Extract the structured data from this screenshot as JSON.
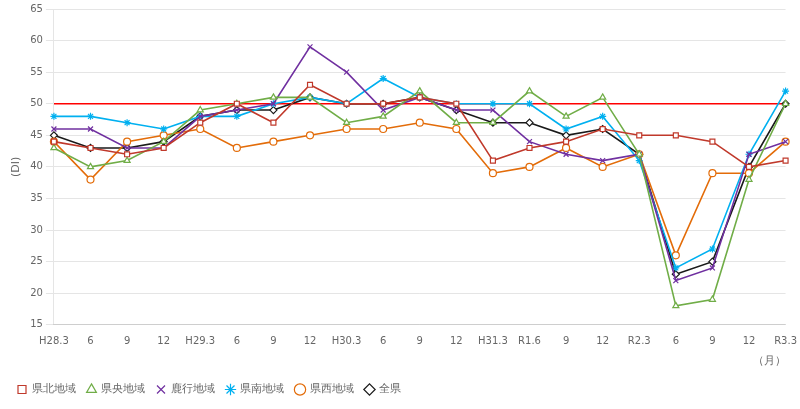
{
  "chart_data": {
    "type": "line",
    "y_label": "(DI)",
    "x_label": "（月）",
    "categories": [
      "H28.3",
      "6",
      "9",
      "12",
      "H29.3",
      "6",
      "9",
      "12",
      "H30.3",
      "6",
      "9",
      "12",
      "H31.3",
      "R1.6",
      "9",
      "12",
      "R2.3",
      "6",
      "9",
      "12",
      "R3.3"
    ],
    "series": [
      {
        "name": "県北地域",
        "color": "#c0392b",
        "marker": "square",
        "values": [
          44,
          43,
          42,
          43,
          47,
          50,
          47,
          53,
          50,
          50,
          51,
          50,
          41,
          43,
          44,
          46,
          45,
          45,
          44,
          40,
          41
        ]
      },
      {
        "name": "県央地域",
        "color": "#70ad47",
        "marker": "triangle",
        "values": [
          43,
          40,
          41,
          44,
          49,
          50,
          51,
          51,
          47,
          48,
          52,
          47,
          47,
          52,
          48,
          51,
          42,
          18,
          19,
          38,
          50
        ]
      },
      {
        "name": "鹿行地域",
        "color": "#7030a0",
        "marker": "x",
        "values": [
          46,
          46,
          43,
          43,
          48,
          49,
          50,
          59,
          55,
          49,
          51,
          49,
          49,
          44,
          42,
          41,
          42,
          22,
          24,
          42,
          44
        ]
      },
      {
        "name": "県南地域",
        "color": "#00b0f0",
        "marker": "star",
        "values": [
          48,
          48,
          47,
          46,
          48,
          48,
          50,
          51,
          50,
          54,
          51,
          50,
          50,
          50,
          46,
          48,
          41,
          24,
          27,
          42,
          52
        ]
      },
      {
        "name": "県西地域",
        "color": "#e36c09",
        "marker": "circle",
        "values": [
          44,
          38,
          44,
          45,
          46,
          43,
          44,
          45,
          46,
          46,
          47,
          46,
          39,
          40,
          43,
          40,
          42,
          26,
          39,
          39,
          44
        ]
      },
      {
        "name": "全県",
        "color": "#1a1a1a",
        "marker": "diamond",
        "values": [
          45,
          43,
          43,
          44,
          48,
          49,
          49,
          51,
          50,
          50,
          51,
          49,
          47,
          47,
          45,
          46,
          42,
          23,
          25,
          40,
          50
        ]
      }
    ],
    "annotations": [
      {
        "type": "hline",
        "value": 50,
        "color": "#ff0000"
      }
    ],
    "ylim": [
      15,
      65
    ],
    "yticks": [
      15,
      20,
      25,
      30,
      35,
      40,
      45,
      50,
      55,
      60,
      65
    ],
    "grid": "y",
    "legend": "lower left"
  }
}
